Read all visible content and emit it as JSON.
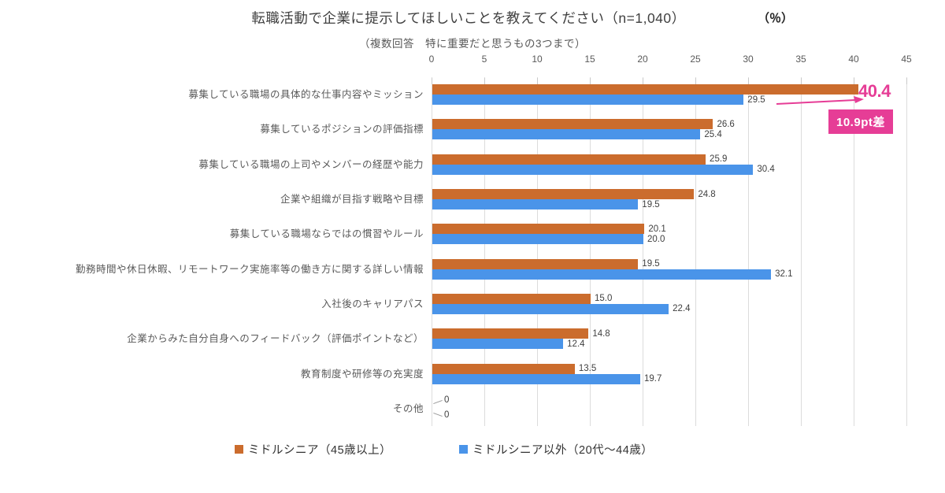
{
  "header": {
    "title": "転職活動で企業に提示してほしいことを教えてください（n=1,040）",
    "subtitle": "（複数回答　特に重要だと思うもの3つまで）",
    "unit_label": "（％）"
  },
  "chart_data": {
    "type": "bar",
    "orientation": "horizontal",
    "title": "転職活動で企業に提示してほしいことを教えてください（n=1,040）",
    "subtitle": "（複数回答　特に重要だと思うもの3つまで）",
    "unit": "%",
    "xlim": [
      0,
      45
    ],
    "xticks": [
      0,
      5,
      10,
      15,
      20,
      25,
      30,
      35,
      40,
      45
    ],
    "grid": true,
    "legend_position": "bottom",
    "categories": [
      "募集している職場の具体的な仕事内容やミッション",
      "募集しているポジションの評価指標",
      "募集している職場の上司やメンバーの経歴や能力",
      "企業や組織が目指す戦略や目標",
      "募集している職場ならではの慣習やルール",
      "勤務時間や休日休暇、リモートワーク実施率等の働き方に関する詳しい情報",
      "入社後のキャリアパス",
      "企業からみた自分自身へのフィードバック（評価ポイントなど）",
      "教育制度や研修等の充実度",
      "その他"
    ],
    "series": [
      {
        "name": "ミドルシニア（45歳以上）",
        "color": "#CB6C2D",
        "values": [
          40.4,
          26.6,
          25.9,
          24.8,
          20.1,
          19.5,
          15.0,
          14.8,
          13.5,
          0
        ],
        "labels": [
          "40.4",
          "26.6",
          "25.9",
          "24.8",
          "20.1",
          "19.5",
          "15.0",
          "14.8",
          "13.5",
          "0"
        ]
      },
      {
        "name": "ミドルシニア以外（20代～44歳）",
        "color": "#4A94E9",
        "values": [
          29.5,
          25.4,
          30.4,
          19.5,
          20.0,
          32.1,
          22.4,
          12.4,
          19.7,
          0
        ],
        "labels": [
          "29.5",
          "25.4",
          "30.4",
          "19.5",
          "20.0",
          "32.1",
          "22.4",
          "12.4",
          "19.7",
          "0"
        ]
      }
    ]
  },
  "annotation": {
    "value_label": "40.4",
    "badge_text": "10.9pt差",
    "color": "#E63D96"
  }
}
